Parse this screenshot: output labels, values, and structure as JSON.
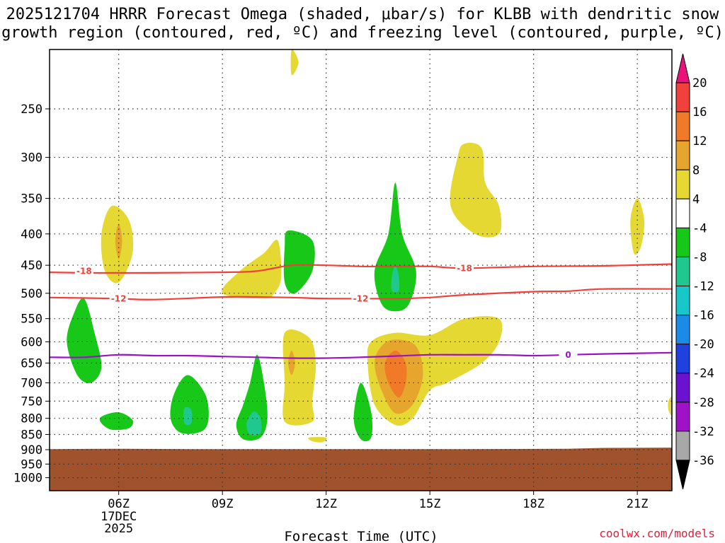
{
  "title_line1": "2025121704 HRRR Forecast Omega (shaded, μbar/s) for KLBB with dendritic snow",
  "title_line2": "growth region (contoured, red, ºC) and freezing level (contoured, purple, ºC)",
  "credit": "coolwx.com/models",
  "chart_data": {
    "type": "contour",
    "title": "2025121704 HRRR Forecast Omega (shaded, μbar/s) for KLBB with dendritic snow growth region (contoured, red, ºC) and freezing level (contoured, purple, ºC)",
    "xlabel": "Forecast Time (UTC)",
    "ylabel": "",
    "x_ticks": [
      "06Z",
      "09Z",
      "12Z",
      "15Z",
      "18Z",
      "21Z"
    ],
    "x_tick_hours": [
      6,
      9,
      12,
      15,
      18,
      21
    ],
    "x_date_label": [
      "17DEC",
      "2025"
    ],
    "xlim": [
      4.0,
      22.0
    ],
    "y_ticks": [
      250,
      300,
      350,
      400,
      450,
      500,
      550,
      600,
      650,
      700,
      750,
      800,
      850,
      900,
      950,
      1000
    ],
    "ylim": [
      1050,
      200
    ],
    "y_scale": "log",
    "grid": "dotted",
    "terrain_color": "#a0522d",
    "terrain_top_hpa": [
      [
        4.0,
        898
      ],
      [
        6.0,
        897
      ],
      [
        8.0,
        898
      ],
      [
        12.0,
        898
      ],
      [
        16.0,
        898
      ],
      [
        19.0,
        897
      ],
      [
        20.0,
        894
      ],
      [
        22.0,
        893
      ]
    ],
    "colorbar": {
      "labels": [
        "20",
        "16",
        "12",
        "8",
        "4",
        "-4",
        "-8",
        "-12",
        "-16",
        "-20",
        "-24",
        "-28",
        "-32",
        "-36"
      ],
      "colors": [
        "#e8127a",
        "#f0413c",
        "#f07a28",
        "#e6a62e",
        "#e6d832",
        "#ffffff",
        "#18c818",
        "#20c890",
        "#18c8c8",
        "#1a8ce8",
        "#2040e0",
        "#6a12d0",
        "#a012c8",
        "#a8a8a8",
        "#000000"
      ]
    },
    "contours": [
      {
        "name": "-18",
        "color": "#f0403c",
        "label_at": [
          [
            5.0,
            460
          ],
          [
            16.0,
            455
          ]
        ],
        "points": [
          [
            4.0,
            462
          ],
          [
            5.0,
            463
          ],
          [
            6.0,
            463
          ],
          [
            7.0,
            463
          ],
          [
            9.0,
            462
          ],
          [
            10.0,
            460
          ],
          [
            11.0,
            450
          ],
          [
            12.0,
            450
          ],
          [
            13.0,
            452
          ],
          [
            14.0,
            452
          ],
          [
            15.0,
            452
          ],
          [
            16.0,
            455
          ],
          [
            18.0,
            452
          ],
          [
            20.0,
            451
          ],
          [
            22.0,
            448
          ]
        ]
      },
      {
        "name": "-12",
        "color": "#f0403c",
        "label_at": [
          [
            6.0,
            510
          ],
          [
            13.0,
            510
          ]
        ],
        "points": [
          [
            4.0,
            508
          ],
          [
            5.0,
            509
          ],
          [
            6.0,
            510
          ],
          [
            7.0,
            512
          ],
          [
            9.0,
            507
          ],
          [
            10.0,
            507
          ],
          [
            11.0,
            508
          ],
          [
            12.0,
            510
          ],
          [
            14.0,
            510
          ],
          [
            15.0,
            508
          ],
          [
            16.0,
            503
          ],
          [
            18.0,
            497
          ],
          [
            19.0,
            496
          ],
          [
            20.0,
            492
          ],
          [
            22.0,
            492
          ]
        ]
      },
      {
        "name": "0",
        "color": "#9a12c8",
        "label_at": [
          [
            19.0,
            630
          ]
        ],
        "points": [
          [
            4.0,
            636
          ],
          [
            5.0,
            636
          ],
          [
            6.0,
            630
          ],
          [
            7.0,
            632
          ],
          [
            8.0,
            632
          ],
          [
            9.0,
            634
          ],
          [
            10.0,
            636
          ],
          [
            11.0,
            638
          ],
          [
            12.0,
            638
          ],
          [
            13.0,
            636
          ],
          [
            14.0,
            633
          ],
          [
            15.0,
            630
          ],
          [
            16.0,
            630
          ],
          [
            17.0,
            630
          ],
          [
            18.0,
            632
          ],
          [
            19.0,
            630
          ],
          [
            20.0,
            628
          ],
          [
            22.0,
            625
          ]
        ]
      }
    ],
    "omega_regions": [
      {
        "level": "-4 to -8",
        "color": "#18c818",
        "points": [
          [
            5.0,
            510
          ],
          [
            5.3,
            580
          ],
          [
            5.5,
            660
          ],
          [
            5.2,
            700
          ],
          [
            4.8,
            680
          ],
          [
            4.5,
            600
          ],
          [
            4.7,
            540
          ]
        ]
      },
      {
        "level": "-4 to -8",
        "color": "#18c818",
        "points": [
          [
            5.5,
            795
          ],
          [
            6.0,
            782
          ],
          [
            6.4,
            805
          ],
          [
            6.3,
            830
          ],
          [
            5.8,
            835
          ],
          [
            5.5,
            815
          ]
        ]
      },
      {
        "level": "-4 to -8",
        "color": "#18c818",
        "points": [
          [
            8.0,
            680
          ],
          [
            8.5,
            730
          ],
          [
            8.6,
            800
          ],
          [
            8.4,
            840
          ],
          [
            7.8,
            845
          ],
          [
            7.5,
            800
          ],
          [
            7.6,
            730
          ]
        ]
      },
      {
        "level": "-8 to -12",
        "color": "#20c890",
        "points": [
          [
            7.9,
            770
          ],
          [
            8.1,
            775
          ],
          [
            8.1,
            815
          ],
          [
            7.9,
            815
          ]
        ]
      },
      {
        "level": "-4 to -8",
        "color": "#18c818",
        "points": [
          [
            10.0,
            630
          ],
          [
            10.2,
            700
          ],
          [
            10.3,
            800
          ],
          [
            10.1,
            860
          ],
          [
            9.6,
            865
          ],
          [
            9.4,
            820
          ],
          [
            9.6,
            760
          ],
          [
            9.8,
            700
          ]
        ]
      },
      {
        "level": "-8 to -12",
        "color": "#20c890",
        "points": [
          [
            9.9,
            780
          ],
          [
            10.1,
            800
          ],
          [
            10.1,
            845
          ],
          [
            9.8,
            850
          ],
          [
            9.7,
            815
          ]
        ]
      },
      {
        "level": "-4 to -8",
        "color": "#18c818",
        "points": [
          [
            10.9,
            395
          ],
          [
            11.6,
            410
          ],
          [
            11.6,
            460
          ],
          [
            11.1,
            500
          ],
          [
            10.8,
            480
          ],
          [
            10.8,
            420
          ]
        ]
      },
      {
        "level": "-4 to -8",
        "color": "#18c818",
        "points": [
          [
            14.0,
            330
          ],
          [
            14.2,
            400
          ],
          [
            14.6,
            460
          ],
          [
            14.4,
            520
          ],
          [
            14.0,
            535
          ],
          [
            13.6,
            520
          ],
          [
            13.4,
            460
          ],
          [
            13.8,
            400
          ]
        ]
      },
      {
        "level": "-8 to -12",
        "color": "#20c890",
        "points": [
          [
            14.0,
            450
          ],
          [
            14.1,
            470
          ],
          [
            14.1,
            495
          ],
          [
            13.9,
            495
          ],
          [
            13.9,
            470
          ]
        ]
      },
      {
        "level": "-4 to -8",
        "color": "#18c818",
        "points": [
          [
            13.0,
            700
          ],
          [
            13.3,
            780
          ],
          [
            13.3,
            860
          ],
          [
            13.0,
            865
          ],
          [
            12.8,
            800
          ]
        ]
      },
      {
        "level": "4 to 8",
        "color": "#e6d832",
        "points": [
          [
            5.8,
            360
          ],
          [
            6.3,
            380
          ],
          [
            6.4,
            430
          ],
          [
            6.0,
            480
          ],
          [
            5.6,
            460
          ],
          [
            5.5,
            400
          ]
        ]
      },
      {
        "level": "8 to 12",
        "color": "#e6a62e",
        "points": [
          [
            6.0,
            385
          ],
          [
            6.1,
            410
          ],
          [
            6.0,
            440
          ],
          [
            5.9,
            410
          ]
        ]
      },
      {
        "level": "4 to 8",
        "color": "#e6d832",
        "points": [
          [
            11.0,
            200
          ],
          [
            11.2,
            210
          ],
          [
            11.0,
            220
          ]
        ]
      },
      {
        "level": "4 to 8",
        "color": "#e6d832",
        "points": [
          [
            10.2,
            430
          ],
          [
            10.6,
            410
          ],
          [
            10.7,
            470
          ],
          [
            10.5,
            500
          ],
          [
            10.2,
            510
          ],
          [
            9.0,
            500
          ],
          [
            9.5,
            460
          ]
        ]
      },
      {
        "level": "4 to 8",
        "color": "#e6d832",
        "points": [
          [
            10.8,
            580
          ],
          [
            11.5,
            590
          ],
          [
            11.7,
            650
          ],
          [
            11.6,
            750
          ],
          [
            11.6,
            810
          ],
          [
            10.8,
            810
          ],
          [
            10.8,
            700
          ]
        ]
      },
      {
        "level": "8 to 12",
        "color": "#e6a62e",
        "points": [
          [
            11.0,
            620
          ],
          [
            11.1,
            650
          ],
          [
            11.0,
            680
          ],
          [
            10.9,
            650
          ]
        ]
      },
      {
        "level": "4 to 8",
        "color": "#e6d832",
        "points": [
          [
            11.5,
            860
          ],
          [
            12.0,
            860
          ],
          [
            11.9,
            875
          ],
          [
            11.6,
            872
          ]
        ]
      },
      {
        "level": "4 to 8",
        "color": "#e6d832",
        "points": [
          [
            16.0,
            285
          ],
          [
            16.5,
            290
          ],
          [
            16.6,
            330
          ],
          [
            17.0,
            360
          ],
          [
            17.0,
            400
          ],
          [
            16.3,
            400
          ],
          [
            15.6,
            360
          ],
          [
            15.8,
            300
          ]
        ]
      },
      {
        "level": "4 to 8",
        "color": "#e6d832",
        "points": [
          [
            14.0,
            580
          ],
          [
            15.0,
            585
          ],
          [
            16.0,
            550
          ],
          [
            17.0,
            550
          ],
          [
            17.0,
            600
          ],
          [
            16.5,
            650
          ],
          [
            15.5,
            700
          ],
          [
            15.0,
            720
          ],
          [
            14.5,
            800
          ],
          [
            14.0,
            820
          ],
          [
            13.4,
            760
          ],
          [
            13.2,
            650
          ],
          [
            13.3,
            600
          ]
        ]
      },
      {
        "level": "8 to 12",
        "color": "#e6a62e",
        "points": [
          [
            14.0,
            595
          ],
          [
            14.6,
            610
          ],
          [
            14.8,
            680
          ],
          [
            14.5,
            760
          ],
          [
            14.0,
            785
          ],
          [
            13.6,
            720
          ],
          [
            13.4,
            650
          ],
          [
            13.6,
            610
          ]
        ]
      },
      {
        "level": "12 to 16",
        "color": "#f07a28",
        "points": [
          [
            14.0,
            620
          ],
          [
            14.3,
            650
          ],
          [
            14.3,
            700
          ],
          [
            14.1,
            740
          ],
          [
            13.8,
            700
          ],
          [
            13.7,
            650
          ]
        ]
      },
      {
        "level": "4 to 8",
        "color": "#e6d832",
        "points": [
          [
            21.0,
            350
          ],
          [
            21.2,
            380
          ],
          [
            21.1,
            420
          ],
          [
            20.9,
            430
          ],
          [
            20.8,
            380
          ]
        ]
      },
      {
        "level": "4 to 8",
        "color": "#e6d832",
        "points": [
          [
            21.9,
            750
          ],
          [
            22.0,
            740
          ],
          [
            22.0,
            790
          ],
          [
            21.9,
            775
          ]
        ]
      }
    ]
  }
}
